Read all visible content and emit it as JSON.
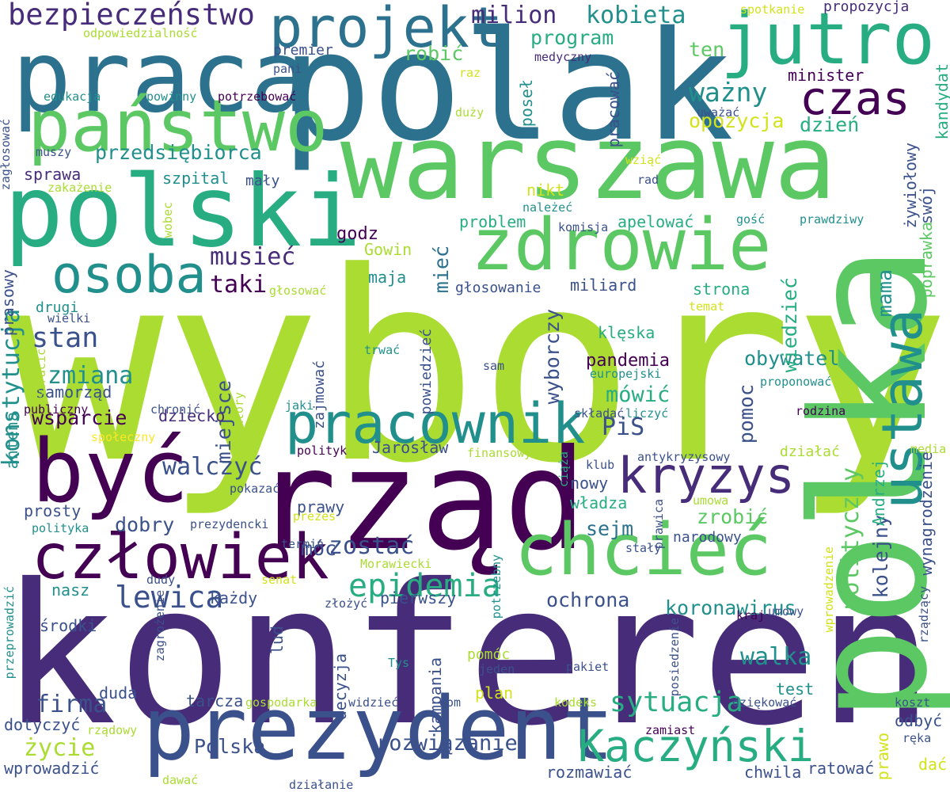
{
  "colors": {
    "background": "#ffffff",
    "palette": [
      "#440154",
      "#472c7a",
      "#3b518b",
      "#2c718e",
      "#21908d",
      "#27ad81",
      "#5cc863",
      "#aadc32",
      "#d2e21b",
      "#fde725"
    ]
  },
  "words": [
    {
      "text": "wybory",
      "color": "#aadc32"
    },
    {
      "text": "konferencja",
      "color": "#472c7a"
    },
    {
      "text": "polak",
      "color": "#2c718e"
    },
    {
      "text": "warszawa",
      "color": "#5cc863"
    },
    {
      "text": "polka",
      "color": "#5cc863"
    },
    {
      "text": "rząd",
      "color": "#440154"
    },
    {
      "text": "polski",
      "color": "#27ad81"
    },
    {
      "text": "praca",
      "color": "#2c718e"
    },
    {
      "text": "prezydent",
      "color": "#3b518b"
    },
    {
      "text": "państwo",
      "color": "#5cc863"
    },
    {
      "text": "być",
      "color": "#440154"
    },
    {
      "text": "zdrowie",
      "color": "#5cc863"
    },
    {
      "text": "jutro",
      "color": "#27ad81"
    },
    {
      "text": "chcieć",
      "color": "#5cc863"
    },
    {
      "text": "ustawa",
      "color": "#21908d"
    },
    {
      "text": "człowiek",
      "color": "#440154"
    },
    {
      "text": "projekt",
      "color": "#2c718e"
    },
    {
      "text": "pracownik",
      "color": "#21908d"
    },
    {
      "text": "osoba",
      "color": "#21908d"
    },
    {
      "text": "kryzys",
      "color": "#472c7a"
    },
    {
      "text": "Kaczyński",
      "color": "#27ad81"
    },
    {
      "text": "czas",
      "color": "#440154"
    },
    {
      "text": "epidemia",
      "color": "#27ad81"
    },
    {
      "text": "bezpieczeństwo",
      "color": "#472c7a"
    },
    {
      "text": "lewica",
      "color": "#3b518b"
    },
    {
      "text": "polityczny",
      "color": "#5cc863"
    },
    {
      "text": "konstytucja",
      "color": "#21908d"
    },
    {
      "text": "kobieta",
      "color": "#21908d"
    },
    {
      "text": "musieć",
      "color": "#472c7a"
    },
    {
      "text": "sytuacja",
      "color": "#27ad81"
    },
    {
      "text": "milion",
      "color": "#472c7a"
    },
    {
      "text": "ważny",
      "color": "#21908d"
    },
    {
      "text": "walka",
      "color": "#21908d"
    },
    {
      "text": "firma",
      "color": "#3b518b"
    },
    {
      "text": "rozwiązanie",
      "color": "#3b518b"
    },
    {
      "text": "stan",
      "color": "#3b518b"
    },
    {
      "text": "opozycja",
      "color": "#d2e21b"
    },
    {
      "text": "PiS",
      "color": "#3b518b"
    },
    {
      "text": "taki",
      "color": "#440154"
    },
    {
      "text": "walczyć",
      "color": "#3b518b"
    },
    {
      "text": "przedsiębiorca",
      "color": "#21908d"
    },
    {
      "text": "mówić",
      "color": "#27ad81"
    },
    {
      "text": "zostać",
      "color": "#3b518b"
    },
    {
      "text": "Polska",
      "color": "#3b518b"
    },
    {
      "text": "wyborczy",
      "color": "#3b518b"
    },
    {
      "text": "dzień",
      "color": "#27ad81"
    },
    {
      "text": "program",
      "color": "#27ad81"
    },
    {
      "text": "życie",
      "color": "#aadc32"
    },
    {
      "text": "obywatel",
      "color": "#21908d"
    },
    {
      "text": "zmiana",
      "color": "#21908d"
    },
    {
      "text": "ochrona",
      "color": "#3b518b"
    },
    {
      "text": "koronawirus",
      "color": "#21908d"
    },
    {
      "text": "wsparcie",
      "color": "#440154"
    },
    {
      "text": "pomoc",
      "color": "#3b518b"
    },
    {
      "text": "kolejny",
      "color": "#3b518b"
    },
    {
      "text": "sejm",
      "color": "#2c718e"
    },
    {
      "text": "dobry",
      "color": "#3b518b"
    },
    {
      "text": "miejsce",
      "color": "#3b518b"
    },
    {
      "text": "mama",
      "color": "#21908d"
    },
    {
      "text": "wiedzieć",
      "color": "#27ad81"
    },
    {
      "text": "mieć",
      "color": "#2c718e"
    },
    {
      "text": "robić",
      "color": "#5cc863"
    },
    {
      "text": "ten",
      "color": "#5cc863"
    },
    {
      "text": "pandemia",
      "color": "#440154"
    },
    {
      "text": "sprawa",
      "color": "#472c7a"
    },
    {
      "text": "szpital",
      "color": "#21908d"
    },
    {
      "text": "godz",
      "color": "#440154"
    },
    {
      "text": "strona",
      "color": "#27ad81"
    },
    {
      "text": "minister",
      "color": "#440154"
    },
    {
      "text": "problem",
      "color": "#27ad81"
    },
    {
      "text": "apelować",
      "color": "#27ad81"
    },
    {
      "text": "zrobić",
      "color": "#5cc863"
    },
    {
      "text": "nikt",
      "color": "#d2e21b"
    },
    {
      "text": "poprawka",
      "color": "#5cc863"
    },
    {
      "text": "żywiołowy",
      "color": "#3b518b"
    },
    {
      "text": "swój",
      "color": "#3b518b"
    },
    {
      "text": "klęska",
      "color": "#27ad81"
    },
    {
      "text": "samorząd",
      "color": "#3b518b"
    },
    {
      "text": "prasowy",
      "color": "#3b518b"
    },
    {
      "text": "antena",
      "color": "#21908d"
    },
    {
      "text": "drugi",
      "color": "#21908d"
    },
    {
      "text": "premier",
      "color": "#3b518b"
    },
    {
      "text": "poseł",
      "color": "#21908d"
    },
    {
      "text": "pracować",
      "color": "#3b518b"
    },
    {
      "text": "kandydat",
      "color": "#27ad81"
    },
    {
      "text": "Gowin",
      "color": "#aadc32"
    },
    {
      "text": "maja",
      "color": "#21908d"
    },
    {
      "text": "miliard",
      "color": "#3b518b"
    },
    {
      "text": "głosowanie",
      "color": "#3b518b"
    },
    {
      "text": "mały",
      "color": "#3b518b"
    },
    {
      "text": "dziecko",
      "color": "#472c7a"
    },
    {
      "text": "prosty",
      "color": "#3b518b"
    },
    {
      "text": "prawy",
      "color": "#3b518b"
    },
    {
      "text": "nowy",
      "color": "#3b518b"
    },
    {
      "text": "władza",
      "color": "#27ad81"
    },
    {
      "text": "Jarosław",
      "color": "#3b518b"
    },
    {
      "text": "Andrzej",
      "color": "#27ad81"
    },
    {
      "text": "wynagrodzenie",
      "color": "#3b518b"
    },
    {
      "text": "narodowy",
      "color": "#3b518b"
    },
    {
      "text": "móc",
      "color": "#3b518b"
    },
    {
      "text": "nasz",
      "color": "#21908d"
    },
    {
      "text": "każdy",
      "color": "#3b518b"
    },
    {
      "text": "pierwszy",
      "color": "#3b518b"
    },
    {
      "text": "środki",
      "color": "#3b518b"
    },
    {
      "text": "lud",
      "color": "#3b518b"
    },
    {
      "text": "decyzja",
      "color": "#3b518b"
    },
    {
      "text": "kampania",
      "color": "#3b518b"
    },
    {
      "text": "duda",
      "color": "#3b518b"
    },
    {
      "text": "dotyczyć",
      "color": "#3b518b"
    },
    {
      "text": "tarcza",
      "color": "#3b518b"
    },
    {
      "text": "wprowadzić",
      "color": "#3b518b"
    },
    {
      "text": "rozmawiać",
      "color": "#3b518b"
    },
    {
      "text": "chwila",
      "color": "#3b518b"
    },
    {
      "text": "ratować",
      "color": "#3b518b"
    },
    {
      "text": "dać",
      "color": "#d2e21b"
    },
    {
      "text": "prawo",
      "color": "#d2e21b"
    },
    {
      "text": "odbyć",
      "color": "#3b518b"
    },
    {
      "text": "test",
      "color": "#21908d"
    },
    {
      "text": "plan",
      "color": "#d2e21b"
    },
    {
      "text": "pomóc",
      "color": "#aadc32"
    },
    {
      "text": "powiedzieć",
      "color": "#3b518b"
    },
    {
      "text": "zajmować",
      "color": "#3b518b"
    },
    {
      "text": "europejski",
      "color": "#21908d"
    },
    {
      "text": "proponować",
      "color": "#21908d"
    },
    {
      "text": "działać",
      "color": "#aadc32"
    },
    {
      "text": "rodzina",
      "color": "#440154"
    },
    {
      "text": "media",
      "color": "#aadc32"
    },
    {
      "text": "propozycja",
      "color": "#472c7a"
    },
    {
      "text": "spotkanie",
      "color": "#d2e21b"
    },
    {
      "text": "odpowiedzialność",
      "color": "#aadc32"
    },
    {
      "text": "medyczny",
      "color": "#472c7a"
    },
    {
      "text": "raz",
      "color": "#d2e21b"
    },
    {
      "text": "duży",
      "color": "#aadc32"
    },
    {
      "text": "uważać",
      "color": "#3b518b"
    },
    {
      "text": "pani",
      "color": "#3b518b"
    },
    {
      "text": "edukacja",
      "color": "#21908d"
    },
    {
      "text": "powinny",
      "color": "#21908d"
    },
    {
      "text": "potrzebować",
      "color": "#440154"
    },
    {
      "text": "zagłosować",
      "color": "#3b518b"
    },
    {
      "text": "muszy",
      "color": "#3b518b"
    },
    {
      "text": "zakażenie",
      "color": "#aadc32"
    },
    {
      "text": "wziąć",
      "color": "#d2e21b"
    },
    {
      "text": "rad",
      "color": "#3b518b"
    },
    {
      "text": "należeć",
      "color": "#21908d"
    },
    {
      "text": "komisja",
      "color": "#3b518b"
    },
    {
      "text": "gość",
      "color": "#21908d"
    },
    {
      "text": "prawdziwy",
      "color": "#21908d"
    },
    {
      "text": "wobec",
      "color": "#aadc32"
    },
    {
      "text": "głosować",
      "color": "#aadc32"
    },
    {
      "text": "temat",
      "color": "#d2e21b"
    },
    {
      "text": "wielki",
      "color": "#3b518b"
    },
    {
      "text": "stracić",
      "color": "#aadc32"
    },
    {
      "text": "trwać",
      "color": "#21908d"
    },
    {
      "text": "sam",
      "color": "#3b518b"
    },
    {
      "text": "publiczny",
      "color": "#440154"
    },
    {
      "text": "chronić",
      "color": "#3b518b"
    },
    {
      "text": "który",
      "color": "#aadc32"
    },
    {
      "text": "jaki",
      "color": "#21908d"
    },
    {
      "text": "składać",
      "color": "#3b518b"
    },
    {
      "text": "liczyć",
      "color": "#21908d"
    },
    {
      "text": "społeczny",
      "color": "#fde725"
    },
    {
      "text": "polityk",
      "color": "#440154"
    },
    {
      "text": "finansowy",
      "color": "#aadc32"
    },
    {
      "text": "ciąża",
      "color": "#27ad81"
    },
    {
      "text": "klub",
      "color": "#3b518b"
    },
    {
      "text": "antykryzysowy",
      "color": "#3b518b"
    },
    {
      "text": "pokazać",
      "color": "#3b518b"
    },
    {
      "text": "polityka",
      "color": "#21908d"
    },
    {
      "text": "prezydencki",
      "color": "#3b518b"
    },
    {
      "text": "prezes",
      "color": "#d2e21b"
    },
    {
      "text": "prawica",
      "color": "#3b518b"
    },
    {
      "text": "umowa",
      "color": "#aadc32"
    },
    {
      "text": "termin",
      "color": "#3b518b"
    },
    {
      "text": "Morawiecki",
      "color": "#aadc32"
    },
    {
      "text": "potrzebny",
      "color": "#21908d"
    },
    {
      "text": "wprowadzenie",
      "color": "#d2e21b"
    },
    {
      "text": "stały",
      "color": "#3b518b"
    },
    {
      "text": "dudy",
      "color": "#3b518b"
    },
    {
      "text": "senat",
      "color": "#d2e21b"
    },
    {
      "text": "złożyć",
      "color": "#3b518b"
    },
    {
      "text": "kraj",
      "color": "#440154"
    },
    {
      "text": "umowy",
      "color": "#3b518b"
    },
    {
      "text": "przeprowadzić",
      "color": "#21908d"
    },
    {
      "text": "zagrożenie",
      "color": "#3b518b"
    },
    {
      "text": "Tys",
      "color": "#21908d"
    },
    {
      "text": "jeden",
      "color": "#3b518b"
    },
    {
      "text": "pakiet",
      "color": "#3b518b"
    },
    {
      "text": "posiedzenie",
      "color": "#3b518b"
    },
    {
      "text": "rządzący",
      "color": "#3b518b"
    },
    {
      "text": "gospodarka",
      "color": "#aadc32"
    },
    {
      "text": "widzieć",
      "color": "#3b518b"
    },
    {
      "text": "dom",
      "color": "#3b518b"
    },
    {
      "text": "kodeks",
      "color": "#aadc32"
    },
    {
      "text": "dziękować",
      "color": "#3b518b"
    },
    {
      "text": "koszt",
      "color": "#3b518b"
    },
    {
      "text": "rządowy",
      "color": "#aadc32"
    },
    {
      "text": "zamiast",
      "color": "#440154"
    },
    {
      "text": "ręka",
      "color": "#3b518b"
    },
    {
      "text": "dawać",
      "color": "#aadc32"
    },
    {
      "text": "działanie",
      "color": "#3b518b"
    }
  ]
}
